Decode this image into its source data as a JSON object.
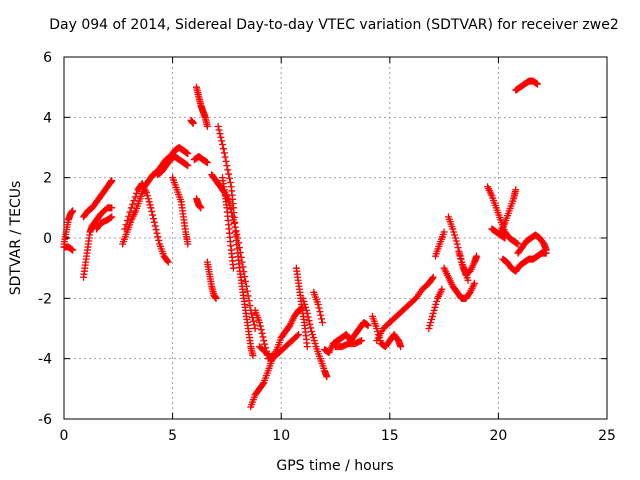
{
  "chart_data": {
    "type": "scatter",
    "title": "Day 094 of 2014, Sidereal Day-to-day VTEC variation (SDTVAR) for receiver zwe2",
    "xlabel": "GPS time / hours",
    "ylabel": "SDTVAR / TECUs",
    "xlim": [
      0,
      25
    ],
    "ylim": [
      -6,
      6
    ],
    "xticks": [
      0,
      5,
      10,
      15,
      20,
      25
    ],
    "yticks": [
      -6,
      -4,
      -2,
      0,
      2,
      4,
      6
    ],
    "grid": true,
    "marker": "+",
    "series": [
      {
        "name": "SDTVAR",
        "color": "#ff0000",
        "segments": [
          [
            [
              0.0,
              -0.2
            ],
            [
              0.1,
              0.2
            ],
            [
              0.2,
              0.6
            ],
            [
              0.3,
              0.8
            ],
            [
              0.4,
              0.9
            ]
          ],
          [
            [
              0.0,
              -0.3
            ],
            [
              0.2,
              -0.3
            ],
            [
              0.4,
              -0.4
            ]
          ],
          [
            [
              0.9,
              0.7
            ],
            [
              1.1,
              0.9
            ],
            [
              1.3,
              1.0
            ],
            [
              1.5,
              1.2
            ],
            [
              1.7,
              1.4
            ],
            [
              1.9,
              1.6
            ],
            [
              2.1,
              1.8
            ],
            [
              2.2,
              1.9
            ]
          ],
          [
            [
              0.9,
              -1.3
            ],
            [
              1.0,
              -0.8
            ],
            [
              1.1,
              -0.3
            ],
            [
              1.2,
              0.2
            ],
            [
              1.3,
              0.4
            ],
            [
              1.5,
              0.6
            ],
            [
              1.7,
              0.8
            ],
            [
              2.0,
              1.0
            ],
            [
              2.2,
              1.0
            ]
          ],
          [
            [
              1.5,
              0.3
            ],
            [
              1.7,
              0.5
            ],
            [
              2.0,
              0.6
            ],
            [
              2.2,
              0.7
            ]
          ],
          [
            [
              2.7,
              -0.2
            ],
            [
              2.9,
              0.2
            ],
            [
              3.1,
              0.6
            ],
            [
              3.3,
              0.9
            ],
            [
              3.5,
              1.3
            ],
            [
              3.7,
              1.7
            ],
            [
              3.9,
              1.9
            ],
            [
              4.1,
              2.1
            ],
            [
              4.3,
              2.2
            ],
            [
              4.5,
              2.4
            ],
            [
              4.7,
              2.6
            ],
            [
              4.9,
              2.7
            ],
            [
              5.1,
              2.9
            ],
            [
              5.3,
              3.0
            ],
            [
              5.5,
              2.9
            ],
            [
              5.7,
              2.8
            ]
          ],
          [
            [
              2.8,
              0.3
            ],
            [
              3.1,
              1.0
            ],
            [
              3.4,
              1.6
            ],
            [
              3.6,
              1.8
            ]
          ],
          [
            [
              3.6,
              1.8
            ],
            [
              3.8,
              1.5
            ],
            [
              4.0,
              1.0
            ],
            [
              4.2,
              0.4
            ],
            [
              4.4,
              -0.2
            ],
            [
              4.6,
              -0.6
            ],
            [
              4.8,
              -0.8
            ]
          ],
          [
            [
              4.3,
              2.1
            ],
            [
              4.5,
              2.2
            ],
            [
              4.7,
              2.4
            ],
            [
              4.9,
              2.6
            ],
            [
              5.1,
              2.7
            ],
            [
              5.3,
              2.6
            ],
            [
              5.5,
              2.5
            ],
            [
              5.7,
              2.4
            ]
          ],
          [
            [
              5.0,
              2.0
            ],
            [
              5.2,
              1.6
            ],
            [
              5.4,
              1.2
            ],
            [
              5.5,
              0.7
            ],
            [
              5.6,
              0.2
            ],
            [
              5.7,
              -0.2
            ]
          ],
          [
            [
              5.85,
              3.9
            ],
            [
              5.95,
              3.8
            ]
          ],
          [
            [
              6.1,
              5.0
            ],
            [
              6.2,
              4.7
            ],
            [
              6.3,
              4.4
            ],
            [
              6.4,
              4.2
            ],
            [
              6.5,
              4.0
            ],
            [
              6.6,
              3.7
            ]
          ],
          [
            [
              6.0,
              2.6
            ],
            [
              6.2,
              2.7
            ],
            [
              6.4,
              2.6
            ],
            [
              6.6,
              2.5
            ]
          ],
          [
            [
              6.1,
              1.3
            ],
            [
              6.2,
              1.1
            ],
            [
              6.3,
              1.0
            ]
          ],
          [
            [
              6.6,
              -0.8
            ],
            [
              6.7,
              -1.2
            ],
            [
              6.8,
              -1.6
            ],
            [
              6.9,
              -1.9
            ],
            [
              7.0,
              -2.0
            ]
          ],
          [
            [
              6.8,
              2.1
            ],
            [
              7.0,
              1.9
            ],
            [
              7.2,
              1.7
            ],
            [
              7.4,
              1.5
            ],
            [
              7.6,
              1.2
            ],
            [
              7.8,
              0.6
            ],
            [
              8.0,
              0.0
            ],
            [
              8.2,
              -0.8
            ],
            [
              8.4,
              -1.6
            ],
            [
              8.6,
              -2.4
            ],
            [
              8.8,
              -3.0
            ]
          ],
          [
            [
              7.1,
              3.7
            ],
            [
              7.3,
              3.1
            ],
            [
              7.5,
              2.4
            ],
            [
              7.7,
              1.7
            ],
            [
              7.8,
              1.0
            ],
            [
              7.9,
              0.2
            ],
            [
              8.0,
              -0.5
            ],
            [
              8.1,
              -1.1
            ],
            [
              8.2,
              -1.6
            ],
            [
              8.3,
              -2.1
            ],
            [
              8.4,
              -2.6
            ],
            [
              8.5,
              -3.1
            ],
            [
              8.6,
              -3.6
            ],
            [
              8.7,
              -3.9
            ]
          ],
          [
            [
              7.3,
              2.0
            ],
            [
              7.4,
              1.5
            ],
            [
              7.5,
              1.0
            ],
            [
              7.6,
              0.3
            ],
            [
              7.7,
              -0.4
            ],
            [
              7.8,
              -1.0
            ]
          ],
          [
            [
              8.6,
              -5.6
            ],
            [
              8.8,
              -5.2
            ],
            [
              9.0,
              -5.0
            ],
            [
              9.2,
              -4.8
            ],
            [
              9.4,
              -4.4
            ],
            [
              9.6,
              -4.0
            ],
            [
              9.8,
              -3.7
            ],
            [
              10.0,
              -3.3
            ],
            [
              10.2,
              -3.1
            ],
            [
              10.4,
              -2.9
            ],
            [
              10.6,
              -2.6
            ],
            [
              10.8,
              -2.4
            ],
            [
              11.0,
              -2.3
            ]
          ],
          [
            [
              8.8,
              -2.4
            ],
            [
              9.0,
              -2.8
            ],
            [
              9.2,
              -3.4
            ],
            [
              9.4,
              -4.0
            ],
            [
              9.6,
              -3.9
            ]
          ],
          [
            [
              9.0,
              -3.6
            ],
            [
              9.3,
              -3.8
            ],
            [
              9.6,
              -4.0
            ],
            [
              9.9,
              -3.8
            ],
            [
              10.2,
              -3.6
            ],
            [
              10.5,
              -3.4
            ],
            [
              10.8,
              -3.2
            ]
          ],
          [
            [
              10.7,
              -1.0
            ],
            [
              10.8,
              -1.5
            ],
            [
              10.9,
              -2.0
            ],
            [
              11.0,
              -2.5
            ],
            [
              11.1,
              -3.0
            ],
            [
              11.2,
              -3.6
            ]
          ],
          [
            [
              11.0,
              -2.0
            ],
            [
              11.2,
              -2.5
            ],
            [
              11.4,
              -3.1
            ],
            [
              11.6,
              -3.6
            ],
            [
              11.8,
              -4.0
            ],
            [
              12.0,
              -4.4
            ],
            [
              12.1,
              -4.6
            ]
          ],
          [
            [
              11.5,
              -1.8
            ],
            [
              11.7,
              -2.2
            ],
            [
              11.9,
              -2.8
            ]
          ],
          [
            [
              12.0,
              -3.7
            ],
            [
              12.2,
              -3.8
            ],
            [
              12.4,
              -3.5
            ],
            [
              12.6,
              -3.4
            ],
            [
              12.8,
              -3.3
            ],
            [
              13.0,
              -3.2
            ],
            [
              13.2,
              -3.4
            ],
            [
              13.4,
              -3.2
            ],
            [
              13.6,
              -3.0
            ],
            [
              13.8,
              -2.8
            ],
            [
              14.0,
              -2.9
            ]
          ],
          [
            [
              12.5,
              -3.6
            ],
            [
              12.8,
              -3.6
            ],
            [
              13.1,
              -3.5
            ],
            [
              13.4,
              -3.5
            ],
            [
              13.7,
              -3.4
            ]
          ],
          [
            [
              14.2,
              -2.6
            ],
            [
              14.4,
              -3.0
            ],
            [
              14.6,
              -3.5
            ],
            [
              14.8,
              -3.6
            ],
            [
              15.0,
              -3.4
            ],
            [
              15.2,
              -3.2
            ],
            [
              15.4,
              -3.4
            ],
            [
              15.5,
              -3.6
            ]
          ],
          [
            [
              14.4,
              -3.4
            ],
            [
              14.7,
              -3.0
            ],
            [
              15.0,
              -2.8
            ],
            [
              15.3,
              -2.6
            ],
            [
              15.6,
              -2.4
            ],
            [
              15.9,
              -2.2
            ],
            [
              16.2,
              -2.0
            ],
            [
              16.5,
              -1.7
            ],
            [
              16.8,
              -1.5
            ],
            [
              17.0,
              -1.3
            ]
          ],
          [
            [
              17.1,
              -0.6
            ],
            [
              17.3,
              -0.2
            ],
            [
              17.5,
              0.2
            ]
          ],
          [
            [
              16.8,
              -3.0
            ],
            [
              17.0,
              -2.5
            ],
            [
              17.2,
              -2.0
            ],
            [
              17.4,
              -1.7
            ]
          ],
          [
            [
              17.5,
              -1.0
            ],
            [
              17.7,
              -1.3
            ],
            [
              17.9,
              -1.6
            ],
            [
              18.1,
              -1.8
            ],
            [
              18.3,
              -2.0
            ],
            [
              18.5,
              -2.0
            ],
            [
              18.7,
              -1.8
            ],
            [
              18.9,
              -1.5
            ]
          ],
          [
            [
              17.7,
              0.7
            ],
            [
              17.9,
              0.3
            ],
            [
              18.1,
              -0.2
            ],
            [
              18.3,
              -0.8
            ],
            [
              18.5,
              -1.2
            ],
            [
              18.7,
              -1.1
            ],
            [
              18.9,
              -0.8
            ],
            [
              19.0,
              -0.6
            ]
          ],
          [
            [
              18.2,
              -0.5
            ],
            [
              18.4,
              -1.0
            ],
            [
              18.6,
              -1.4
            ]
          ],
          [
            [
              19.5,
              1.7
            ],
            [
              19.7,
              1.4
            ],
            [
              19.9,
              1.0
            ],
            [
              20.1,
              0.6
            ],
            [
              20.3,
              0.2
            ],
            [
              20.5,
              0.0
            ],
            [
              20.7,
              -0.1
            ],
            [
              20.9,
              -0.2
            ]
          ],
          [
            [
              19.7,
              0.3
            ],
            [
              19.9,
              0.2
            ],
            [
              20.1,
              0.1
            ],
            [
              20.3,
              0.0
            ]
          ],
          [
            [
              20.1,
              0.2
            ],
            [
              20.3,
              0.5
            ],
            [
              20.5,
              0.9
            ],
            [
              20.7,
              1.3
            ],
            [
              20.8,
              1.6
            ]
          ],
          [
            [
              20.2,
              -0.7
            ],
            [
              20.4,
              -0.8
            ],
            [
              20.6,
              -1.0
            ],
            [
              20.8,
              -1.1
            ],
            [
              21.0,
              -0.9
            ],
            [
              21.2,
              -0.8
            ],
            [
              21.4,
              -0.7
            ],
            [
              21.6,
              -0.7
            ],
            [
              21.8,
              -0.6
            ],
            [
              22.0,
              -0.5
            ],
            [
              22.2,
              -0.5
            ]
          ],
          [
            [
              20.9,
              -0.5
            ],
            [
              21.1,
              -0.3
            ],
            [
              21.3,
              -0.1
            ],
            [
              21.5,
              0.0
            ],
            [
              21.7,
              0.1
            ],
            [
              21.9,
              0.0
            ],
            [
              22.1,
              -0.2
            ],
            [
              22.2,
              -0.4
            ]
          ],
          [
            [
              20.8,
              4.9
            ],
            [
              21.0,
              5.0
            ],
            [
              21.2,
              5.1
            ],
            [
              21.4,
              5.2
            ],
            [
              21.6,
              5.2
            ],
            [
              21.8,
              5.1
            ]
          ]
        ]
      }
    ]
  }
}
